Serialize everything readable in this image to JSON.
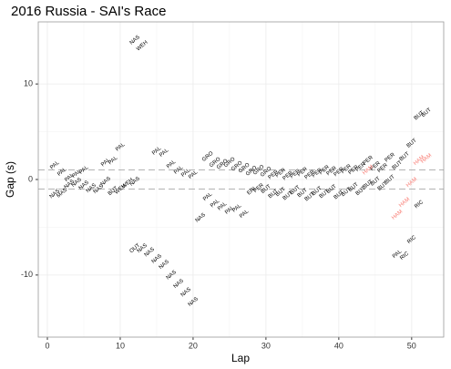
{
  "chart_data": {
    "type": "text_scatter",
    "title": "2016 Russia - SAI's Race",
    "x_label": "Lap",
    "y_label": "Gap (s)",
    "xlim": [
      -1.25,
      54.4
    ],
    "ylim": [
      -16.5,
      16.5
    ],
    "xticks": [
      0,
      10,
      20,
      30,
      40,
      50
    ],
    "yticks": [
      -10,
      0,
      10
    ],
    "grid": true,
    "hlines": [
      1,
      -1
    ],
    "series": [
      {
        "color": "#000000",
        "x": [
          1,
          1,
          2,
          2,
          3,
          3,
          4,
          4,
          5,
          5,
          6,
          7,
          8,
          8,
          9,
          9,
          10,
          10,
          11,
          12,
          12,
          13,
          12,
          13,
          14,
          15,
          16,
          17,
          18,
          19,
          20,
          15,
          16,
          17,
          18,
          19,
          20,
          21,
          22,
          23,
          24,
          25,
          26,
          27,
          28,
          22,
          23,
          24,
          25,
          26,
          27,
          28,
          29,
          29,
          30,
          30,
          31,
          31,
          32,
          32,
          33,
          33,
          34,
          34,
          35,
          35,
          36,
          36,
          37,
          37,
          38,
          38,
          39,
          39,
          40,
          40,
          41,
          41,
          42,
          42,
          43,
          43,
          44,
          44,
          45,
          45,
          46,
          46,
          47,
          47,
          48,
          48,
          49,
          49,
          50,
          50,
          51,
          51,
          52
        ],
        "values": [
          1.5,
          -1.5,
          0.8,
          -1.4,
          0.2,
          -0.5,
          -0.3,
          0.6,
          1.0,
          -0.6,
          -0.9,
          -1.0,
          1.8,
          -0.2,
          2.0,
          -1.2,
          3.4,
          -1.0,
          -0.4,
          -0.2,
          14.6,
          14.0,
          -7.2,
          -7.2,
          -7.6,
          -8.3,
          -8.9,
          -10.0,
          -10.9,
          -11.8,
          -12.8,
          3.0,
          2.8,
          1.6,
          1.0,
          0.7,
          0.5,
          -4.0,
          2.4,
          1.8,
          1.6,
          1.8,
          1.4,
          1.2,
          0.9,
          -1.8,
          -2.5,
          -2.8,
          -3.2,
          -3.0,
          -3.6,
          -1.2,
          -0.9,
          1.0,
          0.8,
          -1.0,
          0.5,
          -1.5,
          0.7,
          -1.3,
          0.4,
          -1.7,
          0.6,
          -1.1,
          0.8,
          -1.4,
          0.5,
          -1.8,
          0.7,
          -1.2,
          1.0,
          -1.5,
          0.9,
          -1.0,
          0.8,
          -1.6,
          1.1,
          -1.3,
          1.0,
          -0.8,
          1.3,
          -1.2,
          2.0,
          -0.5,
          1.4,
          -0.2,
          1.2,
          -0.7,
          2.3,
          0.0,
          1.5,
          -7.8,
          2.4,
          -8.0,
          3.8,
          -6.3,
          -2.6,
          6.7,
          7.0
        ],
        "labels": [
          "PAL",
          "NAS",
          "PAL",
          "MAS",
          "PAL",
          "NAS",
          "NAS",
          "PAL",
          "PAL",
          "NAS",
          "NAS",
          "NAS",
          "PAL",
          "NAS",
          "PAL",
          "BUT",
          "PAL",
          "WEH",
          "WEH",
          "NAS",
          "NAS",
          "WEH",
          "OUT",
          "NAS",
          "NAS",
          "NAS",
          "NAS",
          "NAS",
          "NAS",
          "NAS",
          "NAS",
          "PAL",
          "PAL",
          "PAL",
          "PAL",
          "PAL",
          "PAL",
          "NAS",
          "GRO",
          "GRO",
          "GRO",
          "GRO",
          "GRO",
          "GRO",
          "GRO",
          "PAL",
          "PAL",
          "PAL",
          "PAL",
          "PAL",
          "PAL",
          "ERI",
          "PER",
          "GRO",
          "GRO",
          "BUT",
          "PER",
          "BUT",
          "PER",
          "BUT",
          "PER",
          "BUT",
          "PER",
          "BUT",
          "PER",
          "BUT",
          "PER",
          "BUT",
          "PER",
          "BUT",
          "PER",
          "BUT",
          "PER",
          "BUT",
          "PER",
          "BUT",
          "PER",
          "BUT",
          "PER",
          "BUT",
          "PER",
          "BUT",
          "PER",
          "BUT",
          "PER",
          "BUT",
          "PER",
          "BUT",
          "PER",
          "BUT",
          "BUT",
          "PAL",
          "BUT",
          "RIC",
          "BUT",
          "RIC",
          "RIC",
          "BUT",
          "BUT"
        ]
      },
      {
        "color": "#F8766D",
        "x": [
          44,
          48,
          49,
          50,
          51,
          52
        ],
        "values": [
          1.0,
          -3.7,
          -2.4,
          -0.3,
          2.0,
          2.2
        ],
        "labels": [
          "HAM",
          "HAM",
          "HAM",
          "HAM",
          "HAM",
          "HAM"
        ]
      }
    ]
  }
}
